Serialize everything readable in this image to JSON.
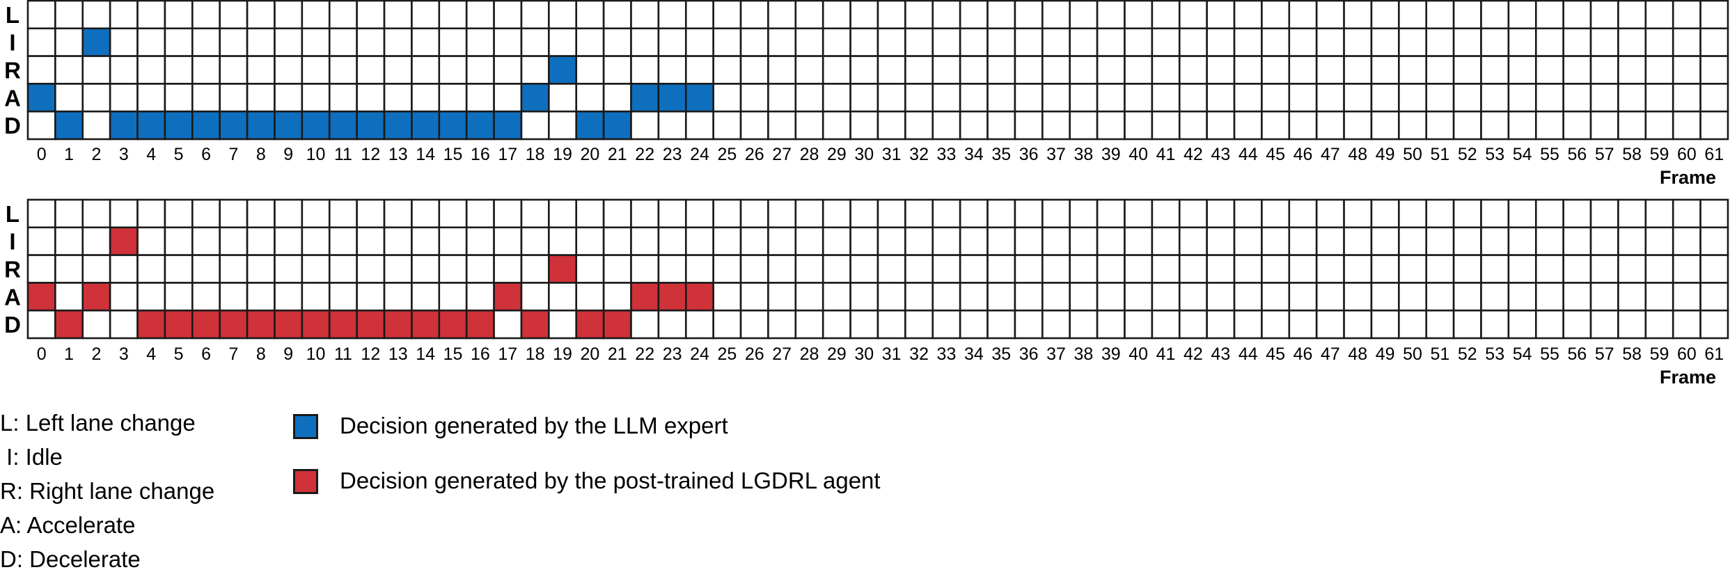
{
  "figure": {
    "row_labels": [
      "L",
      "I",
      "R",
      "A",
      "D"
    ],
    "frames": [
      0,
      1,
      2,
      3,
      4,
      5,
      6,
      7,
      8,
      9,
      10,
      11,
      12,
      13,
      14,
      15,
      16,
      17,
      18,
      19,
      20,
      21,
      22,
      23,
      24,
      25,
      26,
      27,
      28,
      29,
      30,
      31,
      32,
      33,
      34,
      35,
      36,
      37,
      38,
      39,
      40,
      41,
      42,
      43,
      44,
      45,
      46,
      47,
      48,
      49,
      50,
      51,
      52,
      53,
      54,
      55,
      56,
      57,
      58,
      59,
      60,
      61
    ],
    "axis_title": "Frame",
    "panels": [
      {
        "id": "llm-expert",
        "color": "#0f6fbf",
        "decisions": [
          "A",
          "D",
          "I",
          "D",
          "D",
          "D",
          "D",
          "D",
          "D",
          "D",
          "D",
          "D",
          "D",
          "D",
          "D",
          "D",
          "D",
          "D",
          "A",
          "R",
          "D",
          "D",
          "A",
          "A",
          "A"
        ]
      },
      {
        "id": "lgdrl-agent",
        "color": "#d0323a",
        "decisions": [
          "A",
          "D",
          "A",
          "I",
          "D",
          "D",
          "D",
          "D",
          "D",
          "D",
          "D",
          "D",
          "D",
          "D",
          "D",
          "D",
          "D",
          "A",
          "D",
          "R",
          "D",
          "D",
          "A",
          "A",
          "A"
        ]
      }
    ]
  },
  "legend": {
    "actions": [
      {
        "abbr": "L",
        "text": "L: Left lane change"
      },
      {
        "abbr": "I",
        "text": " I: Idle"
      },
      {
        "abbr": "R",
        "text": "R: Right lane change"
      },
      {
        "abbr": "A",
        "text": "A: Accelerate"
      },
      {
        "abbr": "D",
        "text": "D: Decelerate"
      }
    ],
    "sources": [
      {
        "label": "Decision generated by the LLM expert",
        "color": "#0f6fbf"
      },
      {
        "label": "Decision generated by the post-trained LGDRL agent",
        "color": "#d0323a"
      }
    ]
  }
}
